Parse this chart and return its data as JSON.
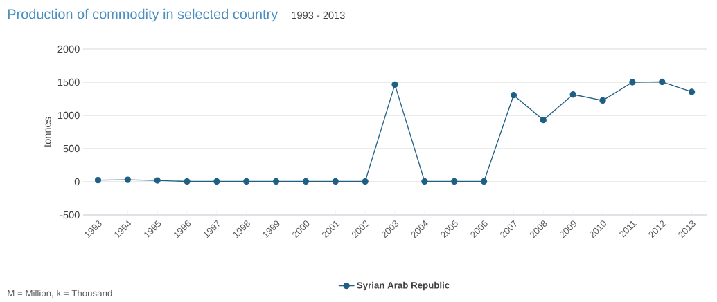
{
  "chart_data": {
    "type": "line",
    "title": "Production of commodity in selected country",
    "subtitle": "1993 - 2013",
    "ylabel": "tonnes",
    "annotations": [
      "M = Million, k = Thousand"
    ],
    "categories": [
      "1993",
      "1994",
      "1995",
      "1996",
      "1997",
      "1998",
      "1999",
      "2000",
      "2001",
      "2002",
      "2003",
      "2004",
      "2005",
      "2006",
      "2007",
      "2008",
      "2009",
      "2010",
      "2011",
      "2012",
      "2013"
    ],
    "series": [
      {
        "name": "Syrian Arab Republic",
        "color": "#1f5f85",
        "values": [
          25,
          30,
          20,
          5,
          5,
          5,
          5,
          5,
          5,
          5,
          1465,
          5,
          5,
          5,
          1305,
          930,
          1315,
          1225,
          1500,
          1505,
          1355
        ]
      }
    ],
    "ylim": [
      -500,
      2000
    ],
    "yticks": [
      -500,
      0,
      500,
      1000,
      1500,
      2000
    ],
    "grid": "y",
    "legend": "bottom",
    "marker": "circle"
  }
}
